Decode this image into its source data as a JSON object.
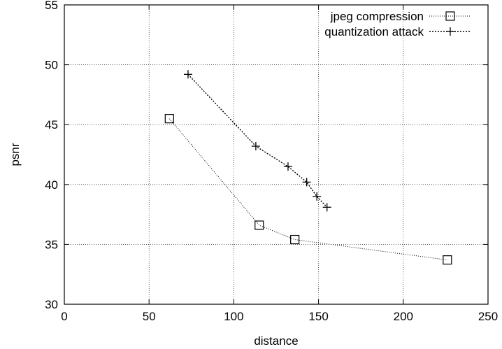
{
  "chart_data": {
    "type": "line",
    "title": "",
    "xlabel": "distance",
    "ylabel": "psnr",
    "xlim": [
      0,
      250
    ],
    "ylim": [
      30,
      55
    ],
    "xticks": [
      0,
      50,
      100,
      150,
      200,
      250
    ],
    "yticks": [
      30,
      35,
      40,
      45,
      50,
      55
    ],
    "x_tick_labels": [
      "0",
      "50",
      "100",
      "150",
      "200",
      "250"
    ],
    "y_tick_labels": [
      "30",
      "35",
      "40",
      "45",
      "50",
      "55"
    ],
    "grid": true,
    "legend_position": "top-right",
    "series": [
      {
        "name": "jpeg compression",
        "marker": "square",
        "line_style": "dotted",
        "color": "#000000",
        "points": [
          {
            "x": 62,
            "y": 45.5
          },
          {
            "x": 115,
            "y": 36.6
          },
          {
            "x": 136,
            "y": 35.4
          },
          {
            "x": 226,
            "y": 33.7
          }
        ]
      },
      {
        "name": "quantization attack",
        "marker": "plus",
        "line_style": "dotted",
        "color": "#000000",
        "points": [
          {
            "x": 73,
            "y": 49.2
          },
          {
            "x": 113,
            "y": 43.2
          },
          {
            "x": 132,
            "y": 41.5
          },
          {
            "x": 143,
            "y": 40.2
          },
          {
            "x": 149,
            "y": 39.0
          },
          {
            "x": 155,
            "y": 38.1
          }
        ]
      }
    ]
  }
}
